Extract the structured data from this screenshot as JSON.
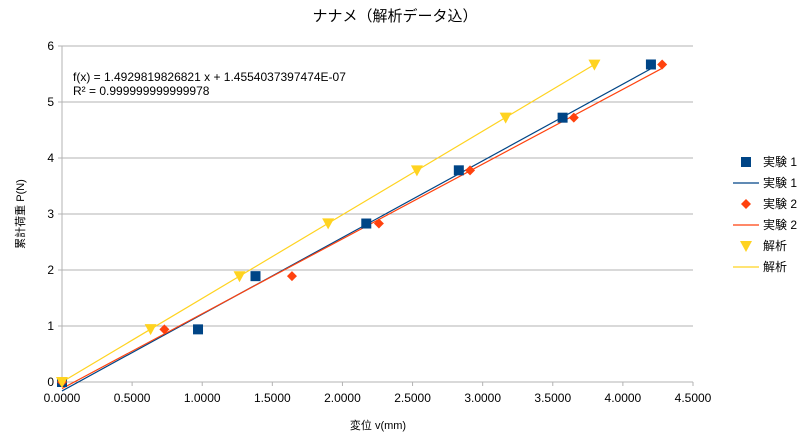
{
  "chart_data": {
    "type": "scatter",
    "title": "ナナメ（解析データ込）",
    "xlabel": "変位 v(mm)",
    "ylabel": "累計荷重 P(N)",
    "xlim": [
      0,
      4.5
    ],
    "ylim": [
      0,
      6
    ],
    "x_ticks": [
      "0.0000",
      "0.5000",
      "1.0000",
      "1.5000",
      "2.0000",
      "2.5000",
      "3.0000",
      "3.5000",
      "4.0000",
      "4.5000"
    ],
    "y_ticks": [
      "0",
      "1",
      "2",
      "3",
      "4",
      "5",
      "6"
    ],
    "grid": "horizontal",
    "legend_position": "right",
    "trendline_equation": "f(x) = 1.4929819826821 x + 1.4554037397474E-07",
    "trendline_r2": "R² = 0.999999999999978",
    "series": [
      {
        "name": "実験 1",
        "marker": "square",
        "color": "#004586",
        "x": [
          0.0,
          0.97,
          1.38,
          2.17,
          2.83,
          3.57,
          4.2
        ],
        "y": [
          0.0,
          0.94,
          1.89,
          2.83,
          3.78,
          4.72,
          5.67
        ],
        "trendline": {
          "slope": 1.37,
          "intercept": -0.16
        }
      },
      {
        "name": "実験 2",
        "marker": "diamond",
        "color": "#ff420e",
        "x": [
          0.0,
          0.73,
          1.64,
          2.26,
          2.91,
          3.65,
          4.28
        ],
        "y": [
          0.0,
          0.94,
          1.89,
          2.83,
          3.78,
          4.72,
          5.67
        ],
        "trendline": {
          "slope": 1.336,
          "intercept": -0.117
        }
      },
      {
        "name": "解析",
        "marker": "triangle-down",
        "color": "#ffd320",
        "x": [
          0.0,
          0.632,
          1.266,
          1.898,
          2.531,
          3.164,
          3.797
        ],
        "y": [
          0.0,
          0.944,
          1.889,
          2.833,
          3.778,
          4.722,
          5.667
        ],
        "trendline": {
          "slope": 1.4929819826821,
          "intercept": 1.4554037397474e-07
        }
      }
    ]
  }
}
